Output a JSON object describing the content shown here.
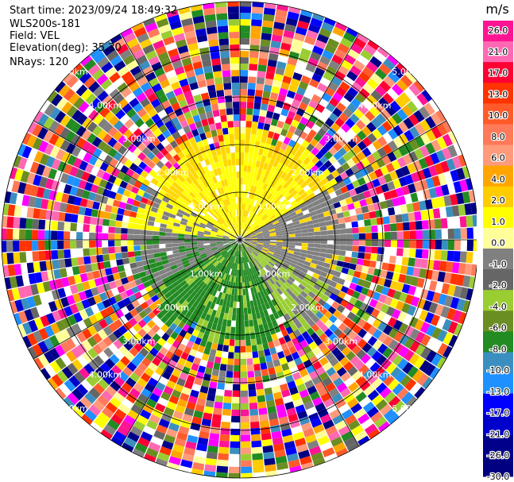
{
  "header": {
    "start_time": "Start time: 2023/09/24 18:49:32",
    "instrument": "WLS200s-181",
    "field": "Field: VEL",
    "elevation": "Elevation(deg): 35.30",
    "nrays": "NRays: 120"
  },
  "chart_data": {
    "type": "heatmap",
    "projection": "polar-ppi",
    "field": "VEL",
    "n_rays": 120,
    "unit": "m/s",
    "range_rings_km": [
      1.0,
      2.0,
      3.0,
      4.0,
      5.0
    ],
    "ring_labels": [
      "1.00km",
      "2.00km",
      "3.00km",
      "4.00km",
      "5.00km"
    ],
    "colorbar": {
      "title": "m/s",
      "ticks": [
        "26.0",
        "21.0",
        "17.0",
        "13.0",
        "10.0",
        "8.0",
        "6.0",
        "4.0",
        "2.0",
        "1.0",
        "0.0",
        "-1.0",
        "-2.0",
        "-4.0",
        "-6.0",
        "-8.0",
        "-10.0",
        "-13.0",
        "-17.0",
        "-21.0",
        "-26.0",
        "-30.0"
      ],
      "colors": [
        "#ff1493",
        "#ff69b4",
        "#ff0033",
        "#ff3300",
        "#ff5a2a",
        "#ff7a5a",
        "#ff9a7a",
        "#ffa500",
        "#ffcc00",
        "#ffff00",
        "#ffff99",
        "#808080",
        "#666666",
        "#9acd32",
        "#6b8e23",
        "#228b22",
        "#3a8fc0",
        "#1e90ff",
        "#0000ff",
        "#0000cc",
        "#00008b",
        "#000080"
      ]
    },
    "near_field": {
      "description_colors": {
        "north": "#ffd700",
        "north_inner": "#ffff00",
        "east": "#808080",
        "south": "#228b22",
        "southeast": "#9acd32"
      }
    },
    "far_field": "noise"
  }
}
